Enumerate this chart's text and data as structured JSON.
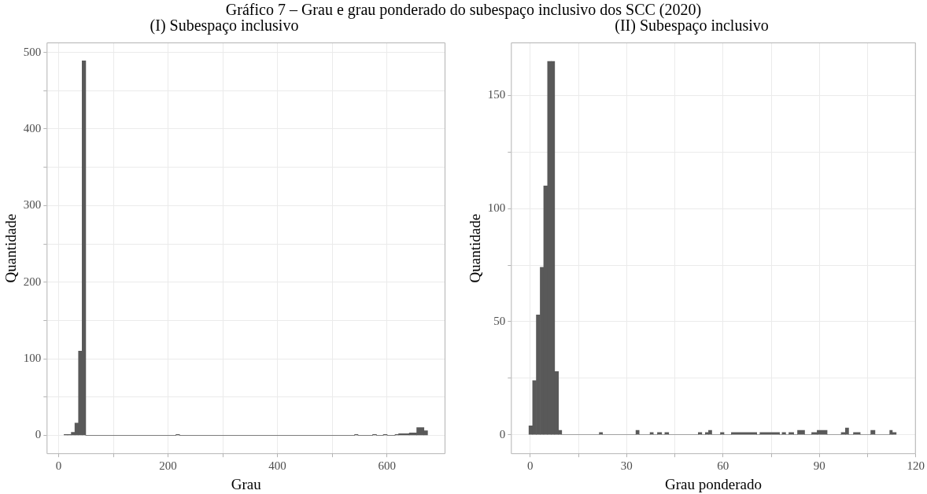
{
  "chart_data": [
    {
      "type": "histogram",
      "title": "(I) Subespaço inclusivo",
      "xlabel": "Grau",
      "ylabel": "Quantidade",
      "annotations": [
        "Gráfico 7 – Grau e grau ponderado do subespaço inclusivo dos SCC (2020)"
      ],
      "color": "#595959",
      "bins": [
        9.8,
        16.4,
        23,
        29.6,
        36.2,
        42.8,
        49.4,
        214.4,
        221,
        541,
        547.2,
        574,
        581,
        593.5,
        600.5,
        615,
        621.5,
        641,
        654.6,
        667.8,
        674.4
      ],
      "values": [
        1,
        1,
        4,
        16,
        110,
        489,
        0,
        1,
        0,
        1,
        0,
        1,
        0,
        1,
        0,
        1,
        2,
        3,
        10,
        6
      ],
      "xlim": [
        -22,
        707
      ],
      "xticks": [
        0,
        {
          "value": 100,
          "label": null
        },
        200,
        {
          "value": 300,
          "label": null
        },
        400,
        {
          "value": 500,
          "label": null
        },
        600
      ],
      "ylim": [
        -24.5,
        513
      ],
      "yticks": [
        0,
        {
          "value": 50,
          "label": null
        },
        100,
        {
          "value": 150,
          "label": null
        },
        200,
        {
          "value": 250,
          "label": null
        },
        300,
        {
          "value": 350,
          "label": null
        },
        400,
        {
          "value": 450,
          "label": null
        },
        500
      ],
      "grid": true
    },
    {
      "type": "histogram",
      "title": "(II) Subespaço inclusivo",
      "xlabel": "Grau ponderado",
      "ylabel": "Quantidade",
      "color": "#595959",
      "bins": [
        -0.4,
        0.75,
        1.9,
        3.1,
        4.2,
        5.4,
        6.5,
        7.6,
        8.8,
        9.8,
        21.5,
        22.5,
        32.9,
        33.9,
        37.3,
        38.3,
        39.6,
        40.9,
        41.9,
        43.1,
        52.3,
        53.4,
        54.5,
        55.5,
        56.5,
        59.2,
        60.3,
        62.6,
        70.5,
        71.5,
        77.6,
        78.4,
        79.5,
        80.5,
        82,
        83.2,
        85.4,
        87.6,
        89.3,
        92.4,
        96.8,
        98.1,
        99.1,
        100.6,
        102.7,
        106,
        107.3,
        111.9,
        112.7,
        113.9
      ],
      "values": [
        4,
        24,
        53,
        74,
        110,
        165,
        165,
        28,
        2,
        0,
        1,
        0,
        2,
        0,
        1,
        0,
        1,
        0,
        1,
        0,
        1,
        0,
        1,
        2,
        0,
        1,
        0,
        1,
        0,
        1,
        0,
        1,
        0,
        1,
        0,
        2,
        0,
        1,
        2,
        0,
        1,
        3,
        0,
        1,
        0,
        2,
        0,
        2,
        1
      ],
      "xlim": [
        -6,
        120
      ],
      "xticks": [
        0,
        {
          "value": 15,
          "label": null
        },
        30,
        {
          "value": 45,
          "label": null
        },
        60,
        {
          "value": 75,
          "label": null
        },
        90,
        {
          "value": 105,
          "label": null
        },
        120
      ],
      "ylim": [
        -8.5,
        173.4
      ],
      "yticks": [
        0,
        {
          "value": 25,
          "label": null
        },
        50,
        {
          "value": 75,
          "label": null
        },
        100,
        {
          "value": 125,
          "label": null
        },
        150
      ],
      "grid": true
    }
  ]
}
